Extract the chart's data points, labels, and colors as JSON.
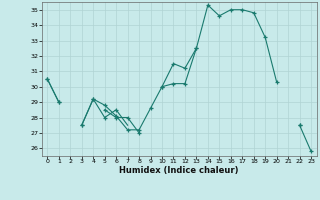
{
  "xlabel": "Humidex (Indice chaleur)",
  "ylabel": "",
  "bg_color": "#c8eaea",
  "grid_color": "#b0d4d4",
  "line_color": "#1a7a6e",
  "xlim": [
    -0.5,
    23.5
  ],
  "ylim": [
    25.5,
    35.5
  ],
  "yticks": [
    26,
    27,
    28,
    29,
    30,
    31,
    32,
    33,
    34,
    35
  ],
  "xticks": [
    0,
    1,
    2,
    3,
    4,
    5,
    6,
    7,
    8,
    9,
    10,
    11,
    12,
    13,
    14,
    15,
    16,
    17,
    18,
    19,
    20,
    21,
    22,
    23
  ],
  "series": [
    [
      30.5,
      29.0,
      null,
      27.5,
      29.2,
      28.8,
      28.1,
      27.2,
      27.2,
      28.6,
      30.0,
      30.2,
      30.2,
      32.5,
      35.3,
      34.6,
      35.0,
      35.0,
      34.8,
      33.2,
      30.3,
      null,
      27.5,
      null
    ],
    [
      null,
      null,
      null,
      null,
      null,
      28.5,
      28.0,
      28.0,
      27.0,
      null,
      null,
      null,
      null,
      null,
      null,
      null,
      null,
      null,
      null,
      null,
      null,
      null,
      null,
      null
    ],
    [
      30.5,
      29.0,
      null,
      27.5,
      29.2,
      28.0,
      28.5,
      27.5,
      null,
      null,
      30.0,
      31.5,
      31.2,
      32.5,
      null,
      null,
      null,
      null,
      null,
      null,
      null,
      null,
      null,
      null
    ],
    [
      null,
      null,
      null,
      null,
      null,
      null,
      null,
      null,
      null,
      null,
      null,
      null,
      null,
      null,
      null,
      null,
      null,
      null,
      null,
      null,
      null,
      null,
      27.5,
      25.8
    ]
  ],
  "marker_series": [
    {
      "x": [
        0,
        1,
        3,
        4,
        5,
        6,
        7,
        8,
        9,
        10,
        11,
        12,
        13,
        14,
        15,
        16,
        17,
        18,
        19,
        20,
        22
      ],
      "y": [
        30.5,
        29.0,
        27.5,
        29.2,
        28.8,
        28.1,
        27.2,
        27.2,
        28.6,
        30.0,
        30.2,
        30.2,
        32.5,
        35.3,
        34.6,
        35.0,
        35.0,
        34.8,
        33.2,
        30.3,
        27.5
      ]
    },
    {
      "x": [
        5,
        6,
        7,
        8
      ],
      "y": [
        28.5,
        28.0,
        28.0,
        27.0
      ]
    },
    {
      "x": [
        0,
        1,
        3,
        4,
        5,
        6,
        10,
        11,
        12,
        13
      ],
      "y": [
        30.5,
        29.0,
        27.5,
        29.2,
        28.0,
        28.5,
        30.0,
        31.5,
        31.2,
        32.5
      ]
    },
    {
      "x": [
        22,
        23
      ],
      "y": [
        27.5,
        25.8
      ]
    }
  ]
}
